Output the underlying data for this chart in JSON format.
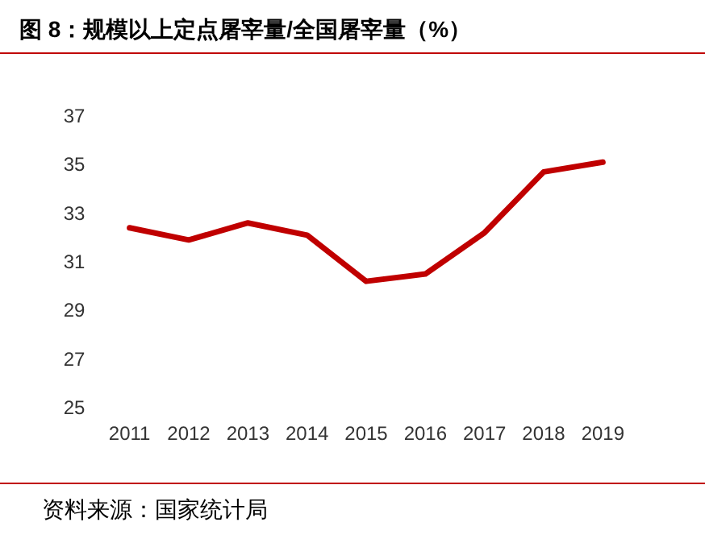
{
  "chart_data": {
    "type": "line",
    "title": "图 8：规模以上定点屠宰量/全国屠宰量（%）",
    "categories": [
      "2011",
      "2012",
      "2013",
      "2014",
      "2015",
      "2016",
      "2017",
      "2018",
      "2019"
    ],
    "series": [
      {
        "color": "#c00000",
        "values": [
          32.4,
          31.9,
          32.6,
          32.1,
          30.2,
          30.5,
          32.2,
          34.7,
          35.1
        ]
      }
    ],
    "ylim": [
      25,
      37
    ],
    "yticks": [
      25,
      27,
      29,
      31,
      33,
      35,
      37
    ],
    "grid": false,
    "marker": "none",
    "line_style": "solid",
    "annotations": [
      "资料来源：国家统计局"
    ]
  }
}
